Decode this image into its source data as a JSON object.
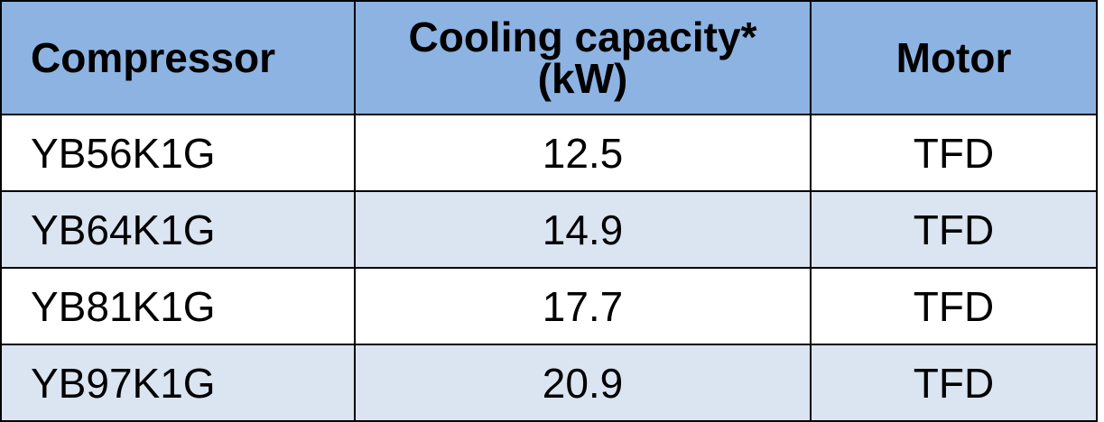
{
  "headers": {
    "compressor": "Compressor",
    "cooling_line1": "Cooling capacity*",
    "cooling_line2": "(kW)",
    "motor": "Motor"
  },
  "rows": [
    {
      "compressor": "YB56K1G",
      "cooling": "12.5",
      "motor": "TFD"
    },
    {
      "compressor": "YB64K1G",
      "cooling": "14.9",
      "motor": "TFD"
    },
    {
      "compressor": "YB81K1G",
      "cooling": "17.7",
      "motor": "TFD"
    },
    {
      "compressor": "YB97K1G",
      "cooling": "20.9",
      "motor": "TFD"
    }
  ],
  "colors": {
    "header_bg": "#8db3e2",
    "row_shaded_bg": "#dbe4f1",
    "row_white_bg": "#ffffff",
    "border": "#000000"
  }
}
